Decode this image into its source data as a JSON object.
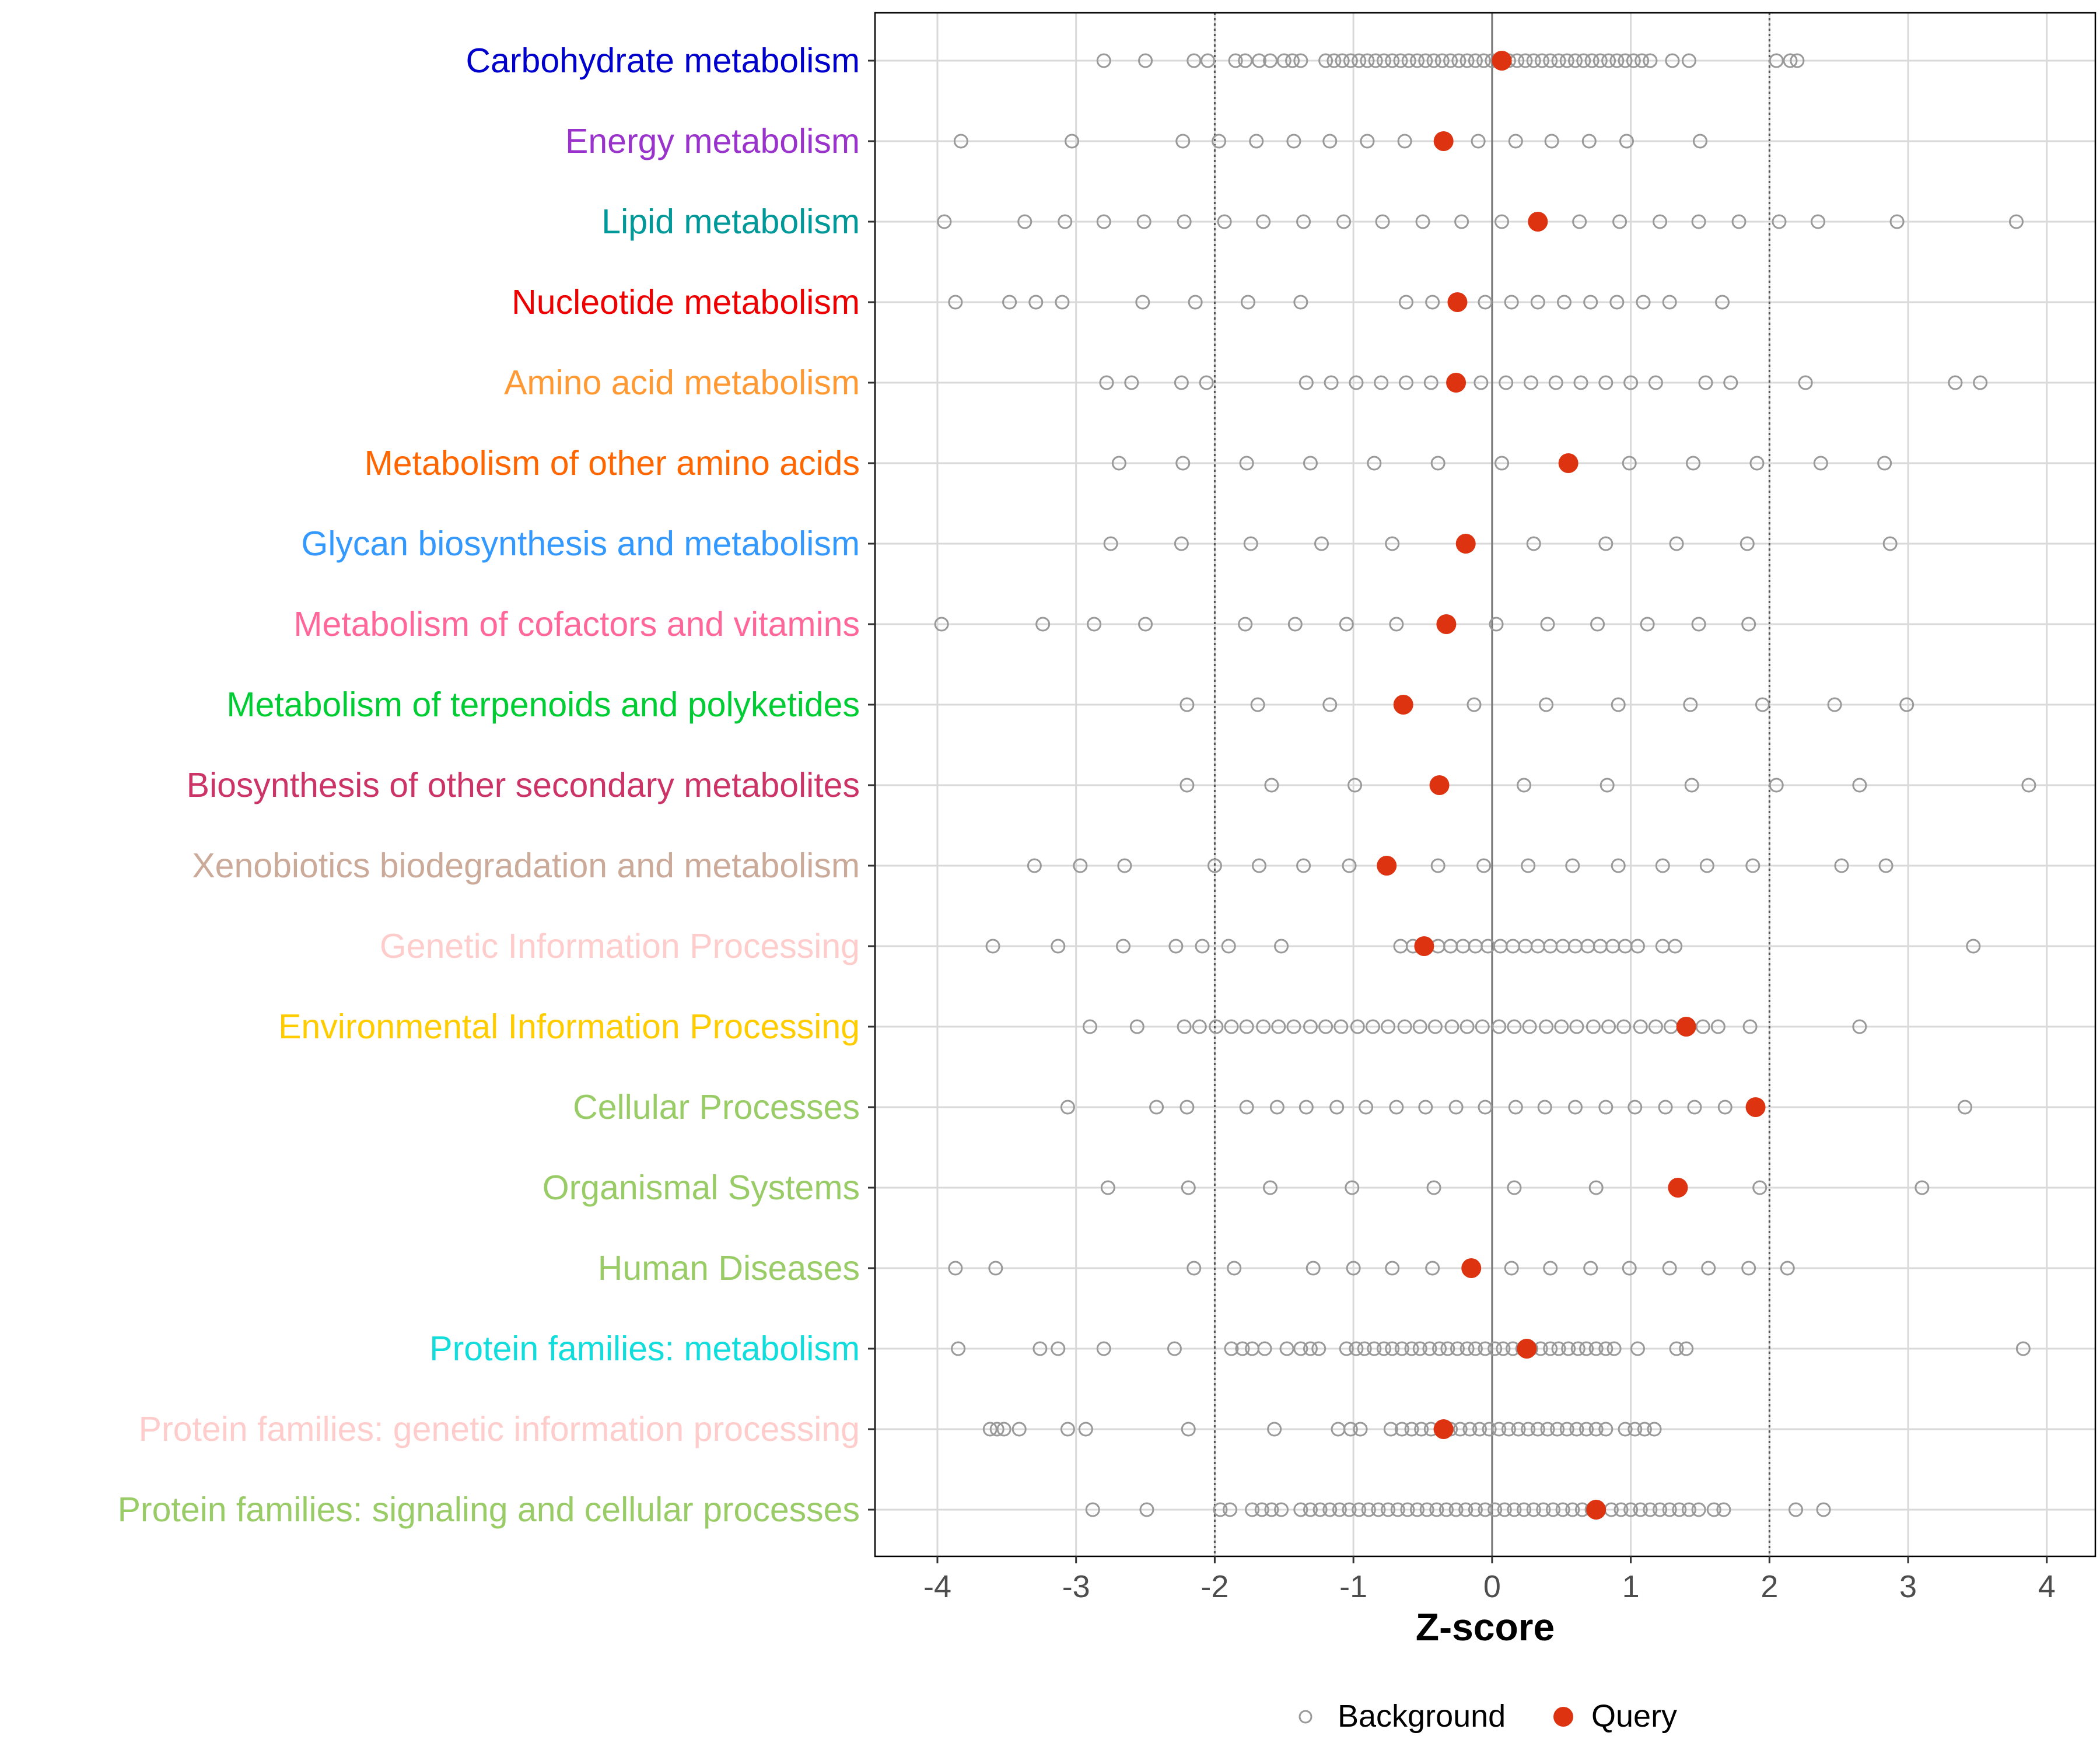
{
  "chart_data": {
    "type": "scatter",
    "xlabel": "Z-score",
    "xlim": [
      -4.45,
      4.35
    ],
    "xticks": [
      -4,
      -3,
      -2,
      -1,
      0,
      1,
      2,
      3,
      4
    ],
    "tick_labels": [
      "-4",
      "-3",
      "-2",
      "-1",
      "0",
      "1",
      "2",
      "3",
      "4"
    ],
    "threshold_lines": [
      -2,
      0,
      2
    ],
    "legend": {
      "position": "bottom",
      "background_label": "Background",
      "query_label": "Query"
    },
    "colors": {
      "background": "#999999",
      "query": "#DD3311",
      "gridline": "#D9D9D9",
      "threshold": "#777777"
    },
    "categories": [
      {
        "label": "Carbohydrate metabolism",
        "color": "#0000CC",
        "query": 0.07,
        "background": [
          -2.8,
          -2.5,
          -2.15,
          -2.05,
          -1.85,
          -1.78,
          -1.68,
          -1.6,
          -1.5,
          -1.44,
          -1.38,
          -1.2,
          -1.14,
          -1.08,
          -1.02,
          -0.96,
          -0.9,
          -0.84,
          -0.78,
          -0.72,
          -0.66,
          -0.6,
          -0.54,
          -0.48,
          -0.42,
          -0.36,
          -0.3,
          -0.24,
          -0.18,
          -0.12,
          -0.06,
          0.0,
          0.12,
          0.18,
          0.24,
          0.3,
          0.36,
          0.42,
          0.48,
          0.54,
          0.6,
          0.66,
          0.72,
          0.78,
          0.84,
          0.9,
          0.96,
          1.02,
          1.08,
          1.14,
          1.3,
          1.42,
          2.05,
          2.15,
          2.2
        ]
      },
      {
        "label": "Energy metabolism",
        "color": "#9933CC",
        "query": -0.35,
        "background": [
          -3.83,
          -3.03,
          -2.23,
          -1.97,
          -1.7,
          -1.43,
          -1.17,
          -0.9,
          -0.63,
          -0.1,
          0.17,
          0.43,
          0.7,
          0.97,
          1.5
        ]
      },
      {
        "label": "Lipid metabolism",
        "color": "#009999",
        "query": 0.33,
        "background": [
          -3.95,
          -3.37,
          -3.08,
          -2.8,
          -2.51,
          -2.22,
          -1.93,
          -1.65,
          -1.36,
          -1.07,
          -0.79,
          -0.5,
          -0.22,
          0.07,
          0.63,
          0.92,
          1.21,
          1.49,
          1.78,
          2.07,
          2.35,
          2.92,
          3.78
        ]
      },
      {
        "label": "Nucleotide metabolism",
        "color": "#EE0000",
        "query": -0.25,
        "background": [
          -3.87,
          -3.48,
          -3.29,
          -3.1,
          -2.52,
          -2.14,
          -1.76,
          -1.38,
          -0.62,
          -0.43,
          -0.05,
          0.14,
          0.33,
          0.52,
          0.71,
          0.9,
          1.09,
          1.28,
          1.66
        ]
      },
      {
        "label": "Amino acid metabolism",
        "color": "#FF9933",
        "query": -0.26,
        "background": [
          -2.78,
          -2.6,
          -2.24,
          -2.06,
          -1.34,
          -1.16,
          -0.98,
          -0.8,
          -0.62,
          -0.44,
          -0.08,
          0.1,
          0.28,
          0.46,
          0.64,
          0.82,
          1.0,
          1.18,
          1.54,
          1.72,
          2.26,
          3.34,
          3.52
        ]
      },
      {
        "label": "Metabolism of other amino acids",
        "color": "#FF6600",
        "query": 0.55,
        "background": [
          -2.69,
          -2.23,
          -1.77,
          -1.31,
          -0.85,
          -0.39,
          0.07,
          0.99,
          1.45,
          1.91,
          2.37,
          2.83
        ]
      },
      {
        "label": "Glycan biosynthesis and metabolism",
        "color": "#3399FF",
        "query": -0.19,
        "background": [
          -2.75,
          -2.24,
          -1.74,
          -1.23,
          -0.72,
          0.3,
          0.82,
          1.33,
          1.84,
          2.87
        ]
      },
      {
        "label": "Metabolism of cofactors and vitamins",
        "color": "#FF6699",
        "query": -0.33,
        "background": [
          -3.97,
          -3.24,
          -2.87,
          -2.5,
          -1.78,
          -1.42,
          -1.05,
          -0.69,
          0.03,
          0.4,
          0.76,
          1.12,
          1.49,
          1.85
        ]
      },
      {
        "label": "Metabolism of terpenoids and polyketides",
        "color": "#00CC33",
        "query": -0.64,
        "background": [
          -2.2,
          -1.69,
          -1.17,
          -0.13,
          0.39,
          0.91,
          1.43,
          1.95,
          2.47,
          2.99
        ]
      },
      {
        "label": "Biosynthesis of other secondary metabolites",
        "color": "#CC3366",
        "query": -0.38,
        "background": [
          -2.2,
          -1.59,
          -0.99,
          0.23,
          0.83,
          1.44,
          2.05,
          2.65,
          3.87
        ]
      },
      {
        "label": "Xenobiotics biodegradation and metabolism",
        "color": "#CCAA99",
        "query": -0.76,
        "background": [
          -3.3,
          -2.97,
          -2.65,
          -2.0,
          -1.68,
          -1.36,
          -1.03,
          -0.39,
          -0.06,
          0.26,
          0.58,
          0.91,
          1.23,
          1.55,
          1.88,
          2.52,
          2.84
        ]
      },
      {
        "label": "Genetic Information Processing",
        "color": "#FFCCCC",
        "query": -0.49,
        "background": [
          -3.6,
          -3.13,
          -2.66,
          -2.28,
          -2.09,
          -1.9,
          -1.52,
          -0.66,
          -0.57,
          -0.48,
          -0.39,
          -0.3,
          -0.21,
          -0.12,
          -0.03,
          0.06,
          0.15,
          0.24,
          0.33,
          0.42,
          0.51,
          0.6,
          0.69,
          0.78,
          0.87,
          0.96,
          1.05,
          1.23,
          1.32,
          3.47
        ]
      },
      {
        "label": "Environmental Information Processing",
        "color": "#FFCC00",
        "query": 1.4,
        "background": [
          -2.9,
          -2.56,
          -2.22,
          -2.11,
          -1.99,
          -1.88,
          -1.77,
          -1.65,
          -1.54,
          -1.43,
          -1.31,
          -1.2,
          -1.09,
          -0.97,
          -0.86,
          -0.75,
          -0.63,
          -0.52,
          -0.41,
          -0.29,
          -0.18,
          -0.07,
          0.05,
          0.16,
          0.27,
          0.39,
          0.5,
          0.61,
          0.73,
          0.84,
          0.95,
          1.07,
          1.18,
          1.29,
          1.52,
          1.63,
          1.86,
          2.65
        ]
      },
      {
        "label": "Cellular Processes",
        "color": "#99CC66",
        "query": 1.9,
        "background": [
          -3.06,
          -2.42,
          -2.2,
          -1.77,
          -1.55,
          -1.34,
          -1.12,
          -0.91,
          -0.69,
          -0.48,
          -0.26,
          -0.05,
          0.17,
          0.38,
          0.6,
          0.82,
          1.03,
          1.25,
          1.46,
          1.68,
          3.41
        ]
      },
      {
        "label": "Organismal Systems",
        "color": "#99CC66",
        "query": 1.34,
        "background": [
          -2.77,
          -2.19,
          -1.6,
          -1.01,
          -0.42,
          0.16,
          0.75,
          1.93,
          3.1
        ]
      },
      {
        "label": "Human Diseases",
        "color": "#99CC66",
        "query": -0.15,
        "background": [
          -3.87,
          -3.58,
          -2.15,
          -1.86,
          -1.29,
          -1.0,
          -0.72,
          -0.43,
          0.14,
          0.42,
          0.71,
          0.99,
          1.28,
          1.56,
          1.85,
          2.13
        ]
      },
      {
        "label": "Protein families: metabolism",
        "color": "#11DDDD",
        "query": 0.25,
        "background": [
          -3.85,
          -3.26,
          -3.13,
          -2.8,
          -2.29,
          -1.88,
          -1.8,
          -1.73,
          -1.64,
          -1.48,
          -1.38,
          -1.31,
          -1.25,
          -1.05,
          -0.98,
          -0.92,
          -0.85,
          -0.78,
          -0.72,
          -0.65,
          -0.58,
          -0.52,
          -0.45,
          -0.38,
          -0.32,
          -0.25,
          -0.18,
          -0.12,
          -0.05,
          0.02,
          0.08,
          0.15,
          0.22,
          0.28,
          0.35,
          0.42,
          0.48,
          0.55,
          0.62,
          0.68,
          0.75,
          0.82,
          0.88,
          1.05,
          1.33,
          1.4,
          3.83
        ]
      },
      {
        "label": "Protein families: genetic information processing",
        "color": "#FFCCCC",
        "query": -0.35,
        "background": [
          -3.62,
          -3.57,
          -3.52,
          -3.41,
          -3.06,
          -2.93,
          -2.19,
          -1.57,
          -1.11,
          -1.02,
          -0.95,
          -0.73,
          -0.65,
          -0.58,
          -0.51,
          -0.44,
          -0.37,
          -0.3,
          -0.23,
          -0.16,
          -0.09,
          -0.02,
          0.05,
          0.12,
          0.19,
          0.26,
          0.33,
          0.4,
          0.47,
          0.54,
          0.61,
          0.68,
          0.75,
          0.82,
          0.96,
          1.03,
          1.1,
          1.17
        ]
      },
      {
        "label": "Protein families: signaling and cellular processes",
        "color": "#99CC66",
        "query": 0.75,
        "background": [
          -2.88,
          -2.49,
          -1.96,
          -1.89,
          -1.73,
          -1.66,
          -1.59,
          -1.52,
          -1.38,
          -1.31,
          -1.24,
          -1.17,
          -1.1,
          -1.03,
          -0.96,
          -0.89,
          -0.82,
          -0.75,
          -0.68,
          -0.61,
          -0.54,
          -0.47,
          -0.4,
          -0.33,
          -0.26,
          -0.19,
          -0.12,
          -0.05,
          0.02,
          0.09,
          0.16,
          0.23,
          0.3,
          0.37,
          0.44,
          0.51,
          0.58,
          0.65,
          0.72,
          0.86,
          0.93,
          1.0,
          1.07,
          1.14,
          1.21,
          1.28,
          1.35,
          1.42,
          1.49,
          1.6,
          1.67,
          2.19,
          2.39
        ]
      }
    ]
  }
}
